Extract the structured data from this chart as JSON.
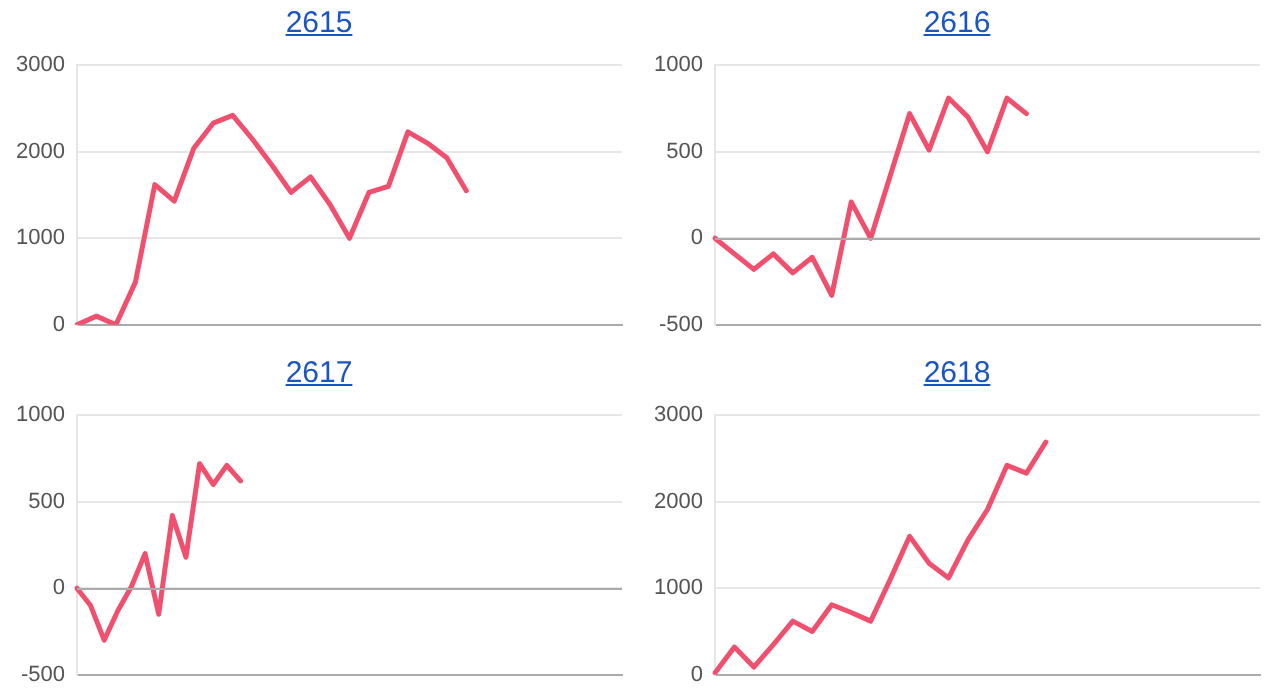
{
  "chart_data": [
    {
      "type": "line",
      "title": "2615",
      "categories": [
        null,
        null,
        null,
        null,
        null,
        null,
        null,
        null,
        null,
        null,
        null,
        null,
        null,
        null,
        null,
        null,
        null,
        null,
        null,
        null,
        null,
        null,
        null,
        null,
        null,
        null,
        null,
        null,
        null
      ],
      "series": [
        {
          "color": "#f0506e",
          "values": [
            0,
            100,
            0,
            490,
            1620,
            1430,
            2040,
            2330,
            2420,
            2150,
            1850,
            1530,
            1710,
            1390,
            1000,
            1530,
            1600,
            2230,
            2100,
            1930,
            1550,
            null,
            null,
            null,
            null,
            null,
            null,
            null,
            null
          ]
        }
      ],
      "ylim": [
        0,
        3000
      ],
      "yticks": [
        0,
        1000,
        2000,
        3000
      ],
      "grid": "y",
      "tick_labels": "y",
      "marker": "none",
      "legend": false
    },
    {
      "type": "line",
      "title": "2616",
      "categories": [
        null,
        null,
        null,
        null,
        null,
        null,
        null,
        null,
        null,
        null,
        null,
        null,
        null,
        null,
        null,
        null,
        null,
        null,
        null,
        null,
        null,
        null,
        null,
        null,
        null,
        null,
        null,
        null,
        null
      ],
      "series": [
        {
          "color": "#f0506e",
          "values": [
            0,
            -90,
            -180,
            -90,
            -200,
            -110,
            -330,
            210,
            0,
            360,
            720,
            510,
            810,
            700,
            500,
            810,
            720,
            null,
            null,
            null,
            null,
            null,
            null,
            null,
            null,
            null,
            null,
            null,
            null
          ]
        }
      ],
      "ylim": [
        -500,
        1000
      ],
      "yticks": [
        -500,
        0,
        500,
        1000
      ],
      "ref_lines": [
        {
          "axis": "y",
          "value": 0,
          "color": "#aaaaaa"
        }
      ],
      "grid": "y",
      "tick_labels": "y",
      "marker": "none",
      "legend": false
    },
    {
      "type": "line",
      "title": "2617",
      "categories": [
        null,
        null,
        null,
        null,
        null,
        null,
        null,
        null,
        null,
        null,
        null,
        null,
        null,
        null,
        null,
        null,
        null,
        null,
        null,
        null,
        null,
        null,
        null,
        null,
        null,
        null,
        null,
        null,
        null,
        null,
        null,
        null,
        null,
        null,
        null,
        null,
        null,
        null,
        null,
        null,
        null
      ],
      "series": [
        {
          "color": "#f0506e",
          "values": [
            0,
            -100,
            -300,
            -130,
            10,
            200,
            -150,
            420,
            180,
            720,
            600,
            710,
            620,
            null,
            null,
            null,
            null,
            null,
            null,
            null,
            null,
            null,
            null,
            null,
            null,
            null,
            null,
            null,
            null,
            null,
            null,
            null,
            null,
            null,
            null,
            null,
            null,
            null,
            null,
            null,
            null
          ]
        }
      ],
      "ylim": [
        -500,
        1000
      ],
      "yticks": [
        -500,
        0,
        500,
        1000
      ],
      "ref_lines": [
        {
          "axis": "y",
          "value": 0,
          "color": "#aaaaaa"
        }
      ],
      "grid": "y",
      "tick_labels": "y",
      "marker": "none",
      "legend": false
    },
    {
      "type": "line",
      "title": "2618",
      "categories": [
        null,
        null,
        null,
        null,
        null,
        null,
        null,
        null,
        null,
        null,
        null,
        null,
        null,
        null,
        null,
        null,
        null,
        null,
        null,
        null,
        null,
        null,
        null,
        null,
        null,
        null,
        null,
        null,
        null
      ],
      "series": [
        {
          "color": "#f0506e",
          "values": [
            20,
            320,
            90,
            350,
            620,
            500,
            810,
            720,
            620,
            1100,
            1600,
            1290,
            1120,
            1560,
            1910,
            2420,
            2330,
            2690,
            null,
            null,
            null,
            null,
            null,
            null,
            null,
            null,
            null,
            null,
            null
          ]
        }
      ],
      "ylim": [
        0,
        3000
      ],
      "yticks": [
        0,
        1000,
        2000,
        3000
      ],
      "grid": "y",
      "tick_labels": "y",
      "marker": "none",
      "legend": false
    }
  ]
}
